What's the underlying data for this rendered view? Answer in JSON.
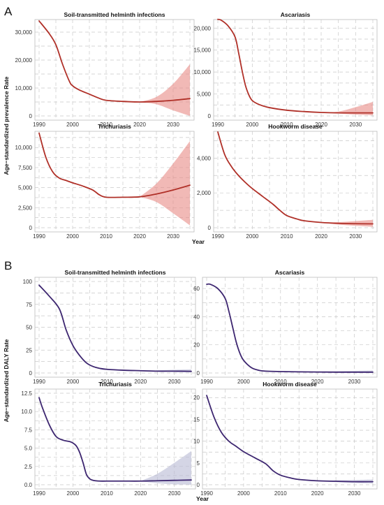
{
  "figure": {
    "panels": [
      {
        "letter": "A",
        "ylabel": "Age−standardized prevalence Rate",
        "xlabel": "Year",
        "line_color": "#b03028",
        "band_color": "#e88a86"
      },
      {
        "letter": "B",
        "ylabel": "Age−standardized DALY Rate",
        "xlabel": "Year",
        "line_color": "#3d2670",
        "band_color": "#b7b9d3"
      }
    ]
  },
  "chart_data": [
    {
      "type": "line",
      "panel": "A",
      "title": "Soil-transmitted helminth infections",
      "xlim": [
        1990,
        2035
      ],
      "ylim": [
        0,
        33000
      ],
      "x_ticks": [
        1990,
        2000,
        2010,
        2020,
        2030
      ],
      "y_ticks": [
        0,
        10000,
        20000,
        30000
      ],
      "y_tick_labels": [
        "0",
        "10,000",
        "20,000",
        "30,000"
      ],
      "series": [
        {
          "x": [
            1990,
            1993,
            1995,
            1997,
            1999,
            2000,
            2002,
            2005,
            2008,
            2010,
            2015,
            2020,
            2025,
            2030,
            2035
          ],
          "y": [
            34000,
            29500,
            25500,
            18500,
            12500,
            10800,
            9300,
            7800,
            6300,
            5600,
            5200,
            5000,
            5200,
            5600,
            6200
          ]
        }
      ],
      "interval": {
        "x": [
          2020,
          2025,
          2030,
          2035
        ],
        "lower": [
          5000,
          4200,
          2000,
          0
        ],
        "upper": [
          5000,
          6800,
          11500,
          18500
        ]
      }
    },
    {
      "type": "line",
      "panel": "A",
      "title": "Ascariasis",
      "xlim": [
        1990,
        2035
      ],
      "ylim": [
        0,
        21000
      ],
      "x_ticks": [
        1990,
        2000,
        2010,
        2020,
        2030
      ],
      "y_ticks": [
        0,
        5000,
        10000,
        15000,
        20000
      ],
      "y_tick_labels": [
        "0",
        "5,000",
        "10,000",
        "15,000",
        "20,000"
      ],
      "series": [
        {
          "x": [
            1990,
            1991,
            1993,
            1995,
            1996,
            1997,
            1998,
            1999,
            2000,
            2002,
            2005,
            2010,
            2015,
            2020,
            2025,
            2030,
            2035
          ],
          "y": [
            22000,
            21800,
            20500,
            18000,
            14500,
            10500,
            7000,
            4800,
            3500,
            2600,
            1900,
            1300,
            1000,
            800,
            700,
            700,
            700
          ]
        }
      ],
      "interval": {
        "x": [
          2020,
          2025,
          2030,
          2035
        ],
        "lower": [
          800,
          550,
          300,
          150
        ],
        "upper": [
          800,
          1000,
          2000,
          3200
        ]
      }
    },
    {
      "type": "line",
      "panel": "A",
      "title": "Trichuriasis",
      "xlim": [
        1990,
        2035
      ],
      "ylim": [
        0,
        11500
      ],
      "x_ticks": [
        1990,
        2000,
        2010,
        2020,
        2030
      ],
      "y_ticks": [
        0,
        2500,
        5000,
        7500,
        10000
      ],
      "y_tick_labels": [
        "0",
        "2,500",
        "5,000",
        "7,500",
        "10,000"
      ],
      "series": [
        {
          "x": [
            1990,
            1992,
            1994,
            1996,
            1998,
            2000,
            2003,
            2006,
            2008,
            2010,
            2015,
            2020,
            2025,
            2030,
            2035
          ],
          "y": [
            11800,
            8800,
            7000,
            6200,
            5900,
            5600,
            5200,
            4700,
            4100,
            3800,
            3800,
            3850,
            4200,
            4700,
            5300
          ]
        }
      ],
      "interval": {
        "x": [
          2020,
          2025,
          2030,
          2035
        ],
        "lower": [
          3850,
          3200,
          1800,
          300
        ],
        "upper": [
          3850,
          5500,
          8000,
          10800
        ]
      }
    },
    {
      "type": "line",
      "panel": "A",
      "title": "Hookworm disease",
      "xlim": [
        1990,
        2035
      ],
      "ylim": [
        0,
        5300
      ],
      "x_ticks": [
        1990,
        2000,
        2010,
        2020,
        2030
      ],
      "y_ticks": [
        0,
        2000,
        4000
      ],
      "y_tick_labels": [
        "0",
        "2,000",
        "4,000"
      ],
      "series": [
        {
          "x": [
            1990,
            1992,
            1994,
            1996,
            1998,
            2000,
            2003,
            2006,
            2008,
            2010,
            2013,
            2015,
            2020,
            2025,
            2030,
            2035
          ],
          "y": [
            5500,
            4200,
            3500,
            3000,
            2600,
            2250,
            1800,
            1350,
            1000,
            700,
            500,
            400,
            300,
            250,
            230,
            220
          ]
        }
      ],
      "interval": {
        "x": [
          2020,
          2025,
          2030,
          2035
        ],
        "lower": [
          300,
          180,
          110,
          50
        ],
        "upper": [
          300,
          320,
          380,
          450
        ]
      }
    },
    {
      "type": "line",
      "panel": "B",
      "title": "Soil-transmitted helminth infections",
      "xlim": [
        1990,
        2035
      ],
      "ylim": [
        0,
        100
      ],
      "x_ticks": [
        1990,
        2000,
        2010,
        2020,
        2030
      ],
      "y_ticks": [
        0,
        25,
        50,
        75,
        100
      ],
      "y_tick_labels": [
        "0",
        "25",
        "50",
        "75",
        "100"
      ],
      "series": [
        {
          "x": [
            1990,
            1993,
            1996,
            1998,
            2000,
            2002,
            2004,
            2006,
            2008,
            2010,
            2015,
            2020,
            2025,
            2030,
            2035
          ],
          "y": [
            96,
            84,
            70,
            47,
            30,
            19,
            11,
            7,
            5,
            4,
            3,
            2.5,
            2,
            2,
            1.8
          ]
        }
      ],
      "interval": {
        "x": [
          2020,
          2025,
          2030,
          2035
        ],
        "lower": [
          2.5,
          1.5,
          1,
          0.5
        ],
        "upper": [
          2.5,
          3,
          3.5,
          4
        ]
      }
    },
    {
      "type": "line",
      "panel": "B",
      "title": "Ascariasis",
      "xlim": [
        1990,
        2035
      ],
      "ylim": [
        0,
        65
      ],
      "x_ticks": [
        1990,
        2000,
        2010,
        2020,
        2030
      ],
      "y_ticks": [
        0,
        20,
        40,
        60
      ],
      "y_tick_labels": [
        "0",
        "20",
        "40",
        "60"
      ],
      "series": [
        {
          "x": [
            1990,
            1991,
            1993,
            1995,
            1996,
            1997,
            1998,
            1999,
            2000,
            2002,
            2004,
            2006,
            2010,
            2015,
            2020,
            2025,
            2030,
            2035
          ],
          "y": [
            63,
            63,
            60,
            53,
            44,
            33,
            22,
            14,
            9,
            4,
            2,
            1.3,
            1,
            0.8,
            0.7,
            0.6,
            0.6,
            0.6
          ]
        }
      ],
      "interval": {
        "x": [
          2020,
          2025,
          2030,
          2035
        ],
        "lower": [
          0.7,
          0.4,
          0.2,
          0.1
        ],
        "upper": [
          0.7,
          1.2,
          1.5,
          1.8
        ]
      }
    },
    {
      "type": "line",
      "panel": "B",
      "title": "Trichuriasis",
      "xlim": [
        1990,
        2035
      ],
      "ylim": [
        0,
        12.5
      ],
      "x_ticks": [
        1990,
        2000,
        2010,
        2020,
        2030
      ],
      "y_ticks": [
        0,
        2.5,
        5,
        7.5,
        10,
        12.5
      ],
      "y_tick_labels": [
        "0.0",
        "2.5",
        "5.0",
        "7.5",
        "10.0",
        "12.5"
      ],
      "series": [
        {
          "x": [
            1990,
            1991,
            1993,
            1995,
            1997,
            1999,
            2000,
            2001,
            2002,
            2003,
            2004,
            2005,
            2006,
            2008,
            2010,
            2015,
            2020,
            2025,
            2030,
            2035
          ],
          "y": [
            11.9,
            10.5,
            8.2,
            6.6,
            6.1,
            5.9,
            5.7,
            5.3,
            4.4,
            3.0,
            1.4,
            0.8,
            0.6,
            0.5,
            0.5,
            0.5,
            0.5,
            0.55,
            0.6,
            0.65
          ]
        }
      ],
      "interval": {
        "x": [
          2020,
          2025,
          2030,
          2035
        ],
        "lower": [
          0.5,
          0.2,
          0.05,
          0
        ],
        "upper": [
          0.5,
          1.5,
          3.0,
          4.6
        ]
      }
    },
    {
      "type": "line",
      "panel": "B",
      "title": "Hookworm disease",
      "xlim": [
        1990,
        2035
      ],
      "ylim": [
        0,
        21
      ],
      "x_ticks": [
        1990,
        2000,
        2010,
        2020,
        2030
      ],
      "y_ticks": [
        0,
        5,
        10,
        15,
        20
      ],
      "y_tick_labels": [
        "0",
        "5",
        "10",
        "15",
        "20"
      ],
      "series": [
        {
          "x": [
            1990,
            1992,
            1994,
            1996,
            1998,
            2000,
            2003,
            2006,
            2008,
            2010,
            2013,
            2015,
            2020,
            2025,
            2030,
            2035
          ],
          "y": [
            20.5,
            15.5,
            12,
            10,
            8.8,
            7.6,
            6.2,
            4.8,
            3.2,
            2.2,
            1.5,
            1.2,
            0.9,
            0.8,
            0.7,
            0.7
          ]
        }
      ],
      "interval": {
        "x": [
          2020,
          2025,
          2030,
          2035
        ],
        "lower": [
          0.9,
          0.6,
          0.4,
          0.3
        ],
        "upper": [
          0.9,
          1.0,
          1.1,
          1.2
        ]
      }
    }
  ]
}
